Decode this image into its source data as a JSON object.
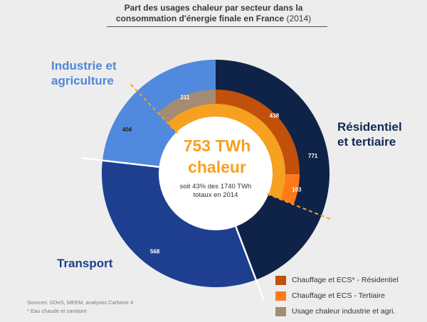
{
  "header": {
    "title_line1": "Part des usages chaleur par secteur dans la",
    "title_line2": "consommation d'énergie finale en France",
    "title_year": "(2014)"
  },
  "sectors": {
    "industrie": [
      "Industrie et",
      "agriculture"
    ],
    "residentiel": [
      "Résidentiel",
      "et tertiaire"
    ],
    "transport": "Transport"
  },
  "center": {
    "big_line1": "753 TWh",
    "big_line2": "chaleur",
    "small_line1": "soit 43% des 1740 TWh",
    "small_line2": "totaux en 2014"
  },
  "legend": [
    {
      "label": "Chauffage et ECS* - Résidentiel",
      "color": "#c0500a"
    },
    {
      "label": "Chauffage et ECS - Tertiaire",
      "color": "#ff7a1a"
    },
    {
      "label": "Usage chaleur industrie et agri.",
      "color": "#a38c74"
    }
  ],
  "sources": {
    "line1": "Sources: SOeS, MEEM, analyses Carbone 4",
    "line2": "* Eau chaude et sanitaire"
  },
  "colors": {
    "residentiel_total": "#0e2347",
    "industrie_total": "#5089dd",
    "transport_total": "#1e3f90",
    "chaleur_residentiel": "#c0500a",
    "chaleur_tertiaire": "#ff7a1a",
    "chaleur_industrie": "#a38c74",
    "accent_orange": "#f6a11f"
  },
  "chart_data": {
    "type": "pie",
    "unit": "TWh",
    "outer_ring": [
      {
        "sector": "Résidentiel et tertiaire",
        "value": 771
      },
      {
        "sector": "Transport",
        "value": 568
      },
      {
        "sector": "Industrie et agriculture",
        "value": 404
      }
    ],
    "inner_ring": [
      {
        "name": "Chauffage et ECS - Résidentiel",
        "value": 438
      },
      {
        "name": "Chauffage et ECS - Tertiaire",
        "value": 103
      },
      {
        "name": "Usage chaleur industrie et agri.",
        "value": 211
      }
    ],
    "center_total": 753,
    "total": 1740
  }
}
